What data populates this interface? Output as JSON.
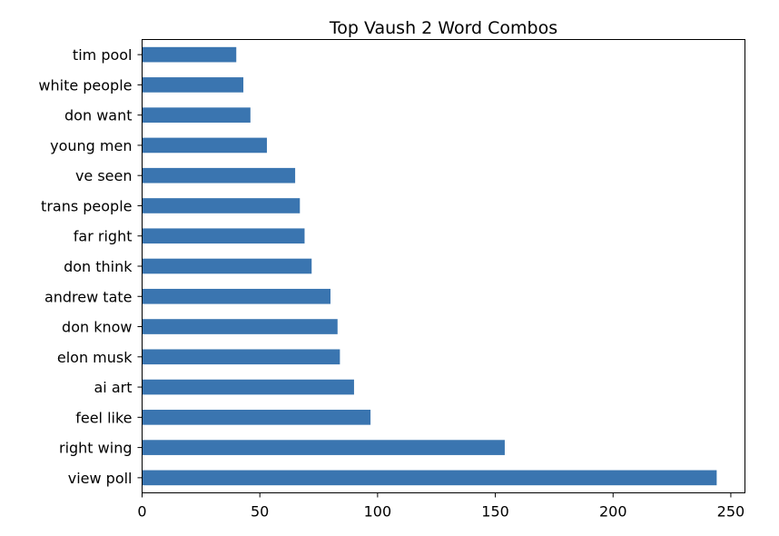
{
  "chart_data": {
    "type": "bar",
    "orientation": "horizontal",
    "title": "Top Vaush 2 Word Combos",
    "xlabel": "",
    "ylabel": "",
    "categories": [
      "view poll",
      "right wing",
      "feel like",
      "ai art",
      "elon musk",
      "don know",
      "andrew tate",
      "don think",
      "far right",
      "trans people",
      "ve seen",
      "young men",
      "don want",
      "white people",
      "tim pool"
    ],
    "values": [
      244,
      154,
      97,
      90,
      84,
      83,
      80,
      72,
      69,
      67,
      65,
      53,
      46,
      43,
      40
    ],
    "xlim": [
      0,
      256
    ],
    "xticks": [
      "0",
      "50",
      "100",
      "150",
      "200",
      "250"
    ],
    "xtick_values": [
      0,
      50,
      100,
      150,
      200,
      250
    ],
    "grid": false,
    "bar_color": "#3a75b0"
  }
}
